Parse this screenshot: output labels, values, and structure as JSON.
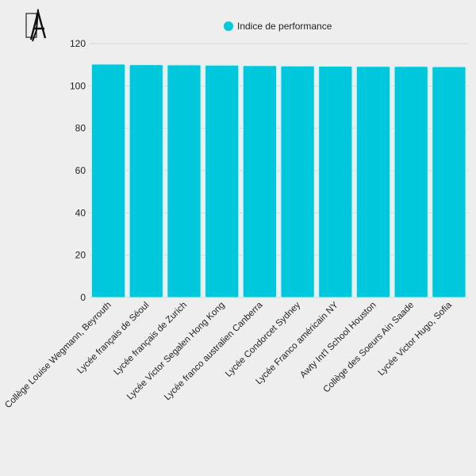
{
  "chart_data": {
    "type": "bar",
    "categories": [
      "Collège Louise Wegmann, Beyrouth",
      "Lycée français de Séoul",
      "Lycée français de Zurich",
      "Lycée Victor Segalen Hong Kong",
      "Lycée franco australien Canberra",
      "Lycée Condorcet Sydney",
      "Lycée Franco américain NY",
      "Awty Int'l School Houston",
      "Collège des Soeurs Ain Saade",
      "Lycée Victor Hugo, Sofia"
    ],
    "series": [
      {
        "name": "Indice de performance",
        "values": [
          110.3,
          110.0,
          109.9,
          109.8,
          109.6,
          109.4,
          109.3,
          109.2,
          109.2,
          109.1
        ]
      }
    ],
    "ylim": [
      0,
      120
    ],
    "yticks": [
      0,
      20,
      40,
      60,
      80,
      100,
      120
    ],
    "grid": true,
    "legend": "top-center",
    "color": "#00c8dc",
    "xlabel": "",
    "ylabel": "",
    "title": ""
  },
  "logo": {
    "icon": "pen-letter-a-logo"
  }
}
